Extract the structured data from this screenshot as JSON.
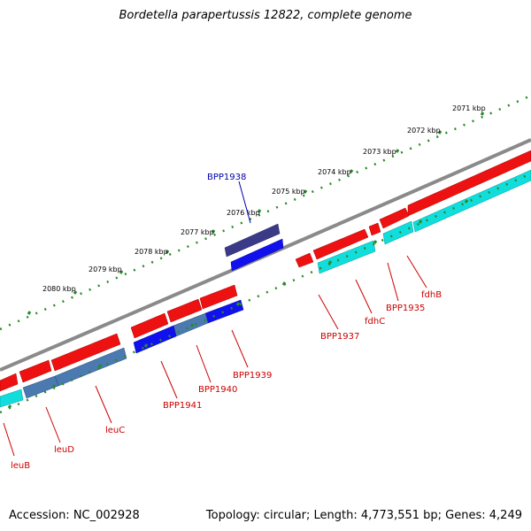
{
  "title": "Bordetella parapertussis 12822, complete genome",
  "footer": {
    "accession": "Accession: NC_002928",
    "summary": "Topology: circular; Length: 4,773,551 bp; Genes: 4,249"
  },
  "ruler": {
    "ticks": [
      {
        "label": "2071 kbp",
        "value": 2071
      },
      {
        "label": "2072 kbp",
        "value": 2072
      },
      {
        "label": "2073 kbp",
        "value": 2073
      },
      {
        "label": "2074 kbp",
        "value": 2074
      },
      {
        "label": "2075 kbp",
        "value": 2075
      },
      {
        "label": "2076 kbp",
        "value": 2076
      },
      {
        "label": "2077 kbp",
        "value": 2077
      },
      {
        "label": "2078 kbp",
        "value": 2078
      },
      {
        "label": "2079 kbp",
        "value": 2079
      },
      {
        "label": "2080 kbp",
        "value": 2080
      }
    ]
  },
  "gene_labels": [
    {
      "name": "BPP1938",
      "color": "#0000aa"
    },
    {
      "name": "BPP1937",
      "color": "#cc0000"
    },
    {
      "name": "fdhC",
      "color": "#cc0000"
    },
    {
      "name": "BPP1935",
      "color": "#cc0000"
    },
    {
      "name": "fdhB",
      "color": "#cc0000"
    },
    {
      "name": "BPP1939",
      "color": "#cc0000"
    },
    {
      "name": "BPP1940",
      "color": "#cc0000"
    },
    {
      "name": "BPP1941",
      "color": "#cc0000"
    },
    {
      "name": "leuC",
      "color": "#cc0000"
    },
    {
      "name": "leuD",
      "color": "#cc0000"
    },
    {
      "name": "leuB",
      "color": "#cc0000"
    }
  ],
  "colors": {
    "backbone": "#8a8a8a",
    "forward_cds": "#ee1111",
    "reverse_cds": "#1111ee",
    "feature_cyan": "#11dddd",
    "feature_steel": "#4a7ab0",
    "feature_navy": "#3a3a88",
    "tick_green": "#2a8a2a",
    "label_red": "#cc0000",
    "label_blue": "#0000aa"
  }
}
